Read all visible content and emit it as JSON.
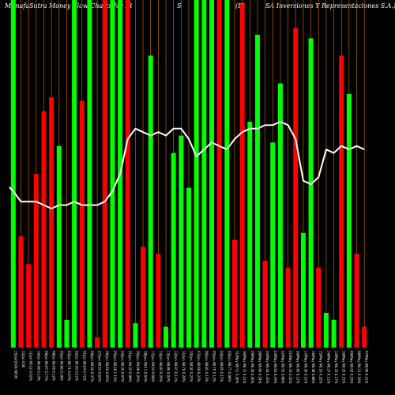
{
  "title": {
    "part1": "MunafaSutra  Money Flow  Charts for IR",
    "part2": "S",
    "part3": "(IR",
    "part4": "SA Inversiones Y Representaciones S.A.)"
  },
  "colors": {
    "background": "#000000",
    "up": "#00ff00",
    "down": "#ff0000",
    "line": "#ffffff",
    "grid": "#cc7a00"
  },
  "chart_data": {
    "type": "bar",
    "categories": [
      "15/Jul",
      "14/Jul",
      "12/Jul",
      "11/Jul",
      "10/Jul",
      "09/Jul",
      "08/Jul",
      "05/Jul",
      "03/Jul",
      "02/Jul",
      "01/Jul",
      "28/Jun",
      "27/Jun",
      "26/Jun",
      "25/Jun",
      "24/Jun",
      "21/Jun",
      "20/Jun",
      "18/Jun",
      "17/Jun",
      "14/Jun",
      "13/Jun",
      "12/Jun",
      "11/Jun",
      "10/Jun",
      "07/Jun",
      "06/Jun",
      "05/Jun",
      "04/Jun",
      "03/Jun",
      "31/May",
      "30/May",
      "29/May",
      "28/May",
      "24/May",
      "23/May",
      "22/May",
      "21/May",
      "20/May",
      "17/May",
      "16/May",
      "15/May",
      "14/May",
      "13/May",
      "10/May",
      "09/May",
      "08/May"
    ],
    "x_tick_labels": [
      "15/Jul/2024 98.95",
      "12/Jul 0.00",
      "11/Jul 99.22 0.02%",
      "10/Jul 99.46 0.13%",
      "09/Jul 98.97 0.77%",
      "08/Jul 99.00 0.12%",
      "05/Jul 98.80 0.30%",
      "03/Jul 98.71 0.07%",
      "02/Jul 98.50 0.21%",
      "01/Jul 98.64 0.71%",
      "28/Jun 98.04 0.37%",
      "27/Jun 98.53 0.62%",
      "26/Jun 98.60 0.05%",
      "25/Jun 98.28 1.15%",
      "24/Jun 98.35 0.07%",
      "21/Jun 99.33 0.99%",
      "20/Jun 99.08 0.25%",
      "18/Jun 99.11 0.03%",
      "17/Jun 99.03 0.08%",
      "14/Jun 98.83 0.20%",
      "13/Jun 98.86 0.03%",
      "12/Jun 98.97 0.11%",
      "11/Jun 98.70 0.28%",
      "10/Jun 98.92 0.22%",
      "07/Jun 98.69 0.23%",
      "06/Jun 98.82 0.13%",
      "05/Jun 98.70 0.12%",
      "04/Jun 98.85 0.15%",
      "03/Jun 98.77 0.08%",
      "31/May 98.51 0.26%",
      "30/May 98.72 0.21%",
      "29/May 98.36 0.36%",
      "28/May 98.60 0.24%",
      "24/May 98.44 0.16%",
      "23/May 98.63 0.19%",
      "22/May 98.55 0.08%",
      "21/May 98.33 0.22%",
      "20/May 98.45 0.12%",
      "17/May 98.30 0.15%",
      "16/May 98.38 0.08%",
      "15/May 98.16 0.22%",
      "14/May 98.27 0.11%",
      "13/May 98.10 0.17%",
      "10/May 98.25 0.15%",
      "09/May 98.02 0.23%",
      "08/May 98.21 0.19%",
      "07/May 98.00 0.21%"
    ],
    "bar_values": [
      100,
      32,
      24,
      50,
      68,
      72,
      58,
      8,
      100,
      71,
      100,
      3,
      100,
      100,
      100,
      100,
      7,
      29,
      84,
      27,
      6,
      56,
      61,
      46,
      100,
      100,
      100,
      100,
      100,
      31,
      99,
      65,
      90,
      25,
      59,
      76,
      23,
      92,
      33,
      89,
      23,
      10,
      8,
      84,
      73,
      27,
      6
    ],
    "bar_colors": [
      "up",
      "down",
      "down",
      "down",
      "down",
      "down",
      "up",
      "up",
      "up",
      "down",
      "up",
      "down",
      "down",
      "up",
      "up",
      "down",
      "up",
      "down",
      "up",
      "down",
      "up",
      "up",
      "up",
      "up",
      "up",
      "up",
      "up",
      "down",
      "up",
      "down",
      "down",
      "up",
      "up",
      "down",
      "up",
      "up",
      "down",
      "down",
      "up",
      "up",
      "down",
      "up",
      "up",
      "down",
      "up",
      "down",
      "down"
    ],
    "line_values": [
      45,
      42,
      42,
      42,
      41,
      40,
      41,
      41,
      42,
      41,
      41,
      41,
      42,
      45,
      50,
      60,
      63,
      62,
      61,
      62,
      61,
      63,
      63,
      60,
      55,
      57,
      59,
      58,
      57,
      60,
      62,
      63,
      63,
      64,
      64,
      65,
      64,
      60,
      48,
      47,
      49,
      57,
      56,
      58,
      57,
      58,
      57
    ],
    "ylim": [
      0,
      100
    ],
    "grid": true
  }
}
